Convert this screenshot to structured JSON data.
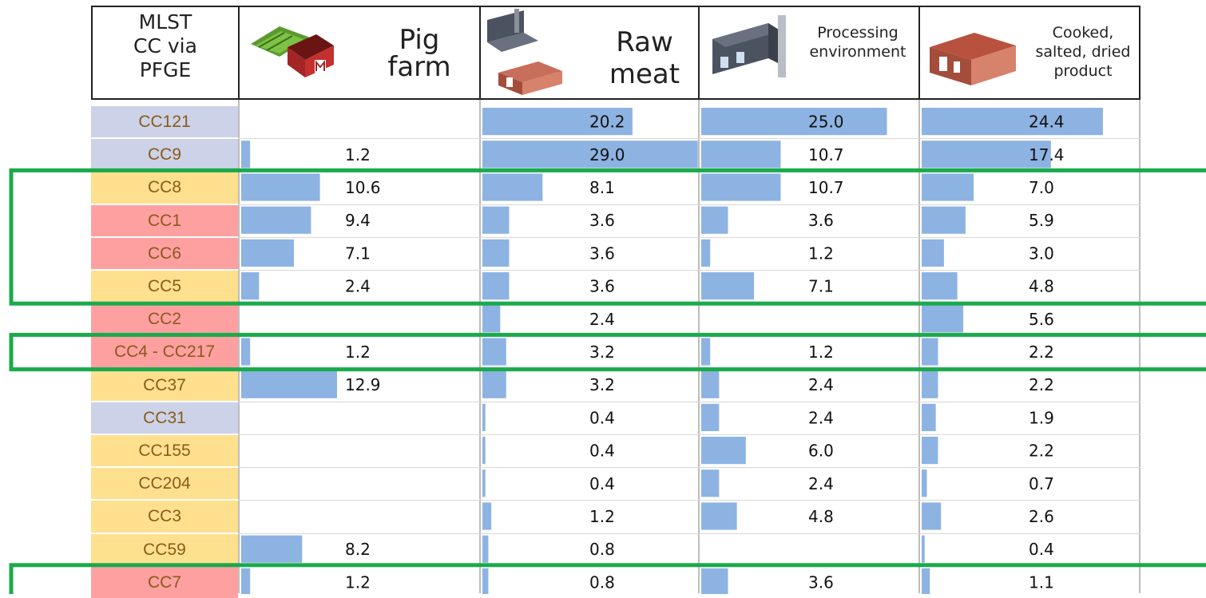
{
  "header": {
    "first_col": [
      "MLST",
      "CC via",
      "PFGE"
    ],
    "columns": [
      {
        "lines": [
          "Pig",
          "farm"
        ],
        "icon": "farm-barn-icon"
      },
      {
        "lines": [
          "Raw",
          "meat"
        ],
        "icon": "factory-and-abattoir-icon"
      },
      {
        "lines": [
          "Processing",
          "environment"
        ],
        "icon": "factory-icon"
      },
      {
        "lines": [
          "Cooked,",
          "salted, dried",
          "product"
        ],
        "icon": "processing-plant-icon"
      }
    ]
  },
  "colors": {
    "bar": "#8db3e2",
    "blue_row": "#ccd2e8",
    "yellow_row": "#ffe08f",
    "red_row": "#ffa0a0",
    "highlight_box": "#1aaa4b",
    "label_text": "#8a5a1a"
  },
  "chart_data": {
    "type": "table",
    "categories": [
      "CC121",
      "CC9",
      "CC8",
      "CC1",
      "CC6",
      "CC5",
      "CC2",
      "CC4 - CC217",
      "CC37",
      "CC31",
      "CC155",
      "CC204",
      "CC3",
      "CC59",
      "CC7"
    ],
    "row_groups": [
      "blue",
      "blue",
      "yellow",
      "red",
      "red",
      "yellow",
      "red",
      "red",
      "yellow",
      "blue",
      "yellow",
      "yellow",
      "yellow",
      "yellow",
      "red"
    ],
    "series": [
      {
        "name": "Pig farm",
        "values": [
          null,
          1.2,
          10.6,
          9.4,
          7.1,
          2.4,
          null,
          1.2,
          12.9,
          null,
          null,
          null,
          null,
          8.2,
          1.2
        ]
      },
      {
        "name": "Raw meat",
        "values": [
          20.2,
          29.0,
          8.1,
          3.6,
          3.6,
          3.6,
          2.4,
          3.2,
          3.2,
          0.4,
          0.4,
          0.4,
          1.2,
          0.8,
          0.8
        ]
      },
      {
        "name": "Processing environment",
        "values": [
          25.0,
          10.7,
          10.7,
          3.6,
          1.2,
          7.1,
          null,
          1.2,
          2.4,
          2.4,
          6.0,
          2.4,
          4.8,
          null,
          3.6
        ]
      },
      {
        "name": "Cooked, salted, dried product",
        "values": [
          24.4,
          17.4,
          7.0,
          5.9,
          3.0,
          4.8,
          5.6,
          2.2,
          2.2,
          1.9,
          2.2,
          0.7,
          2.6,
          0.4,
          1.1
        ]
      }
    ],
    "highlighted_groups": [
      [
        "CC8",
        "CC1",
        "CC6",
        "CC5"
      ],
      [
        "CC4 - CC217"
      ],
      [
        "CC7"
      ]
    ]
  }
}
